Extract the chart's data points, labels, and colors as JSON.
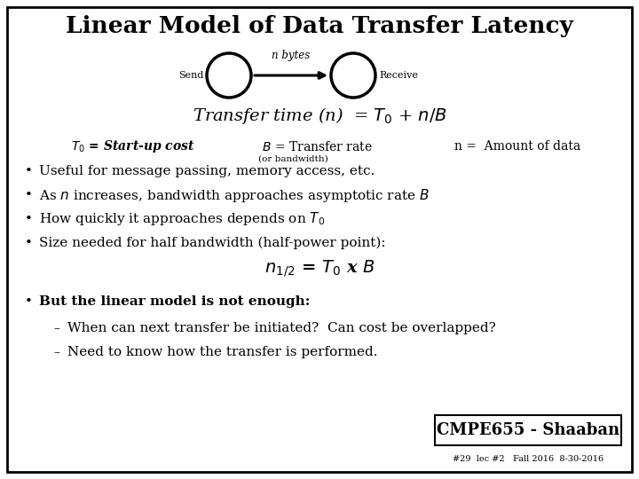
{
  "title": "Linear Model of Data Transfer Latency",
  "background_color": "#ffffff",
  "border_color": "#000000",
  "text_color": "#000000",
  "send_label": "Send",
  "receive_label": "Receive",
  "nbytes_label": "n bytes",
  "formula": "Transfer time (n)  = $T_0$ + $n/B$",
  "def_t0": "$T_0$ = Start-up cost",
  "def_b": "   $B$ = Transfer rate",
  "def_sub": "(or bandwidth)",
  "def_n": "     n =  Amount of data",
  "bullets": [
    "Useful for message passing, memory access, etc.",
    "As $n$ increases, bandwidth approaches asymptotic rate $B$",
    "How quickly it approaches depends on $T_0$",
    "Size needed for half bandwidth (half-power point):"
  ],
  "formula2": "$n_{1/2}$ = $T_0$ x $B$",
  "bullet2": "But the linear model is not enough:",
  "sub_bullets": [
    "When can next transfer be initiated?  Can cost be overlapped?",
    "Need to know how the transfer is performed."
  ],
  "footer_box": "CMPE655 - Shaaban",
  "footer_small": "#29  lec #2   Fall 2016  8-30-2016",
  "title_fontsize": 19,
  "body_fontsize": 11,
  "formula_fontsize": 14,
  "def_fontsize": 10,
  "footer_fontsize": 13,
  "small_fontsize": 7
}
